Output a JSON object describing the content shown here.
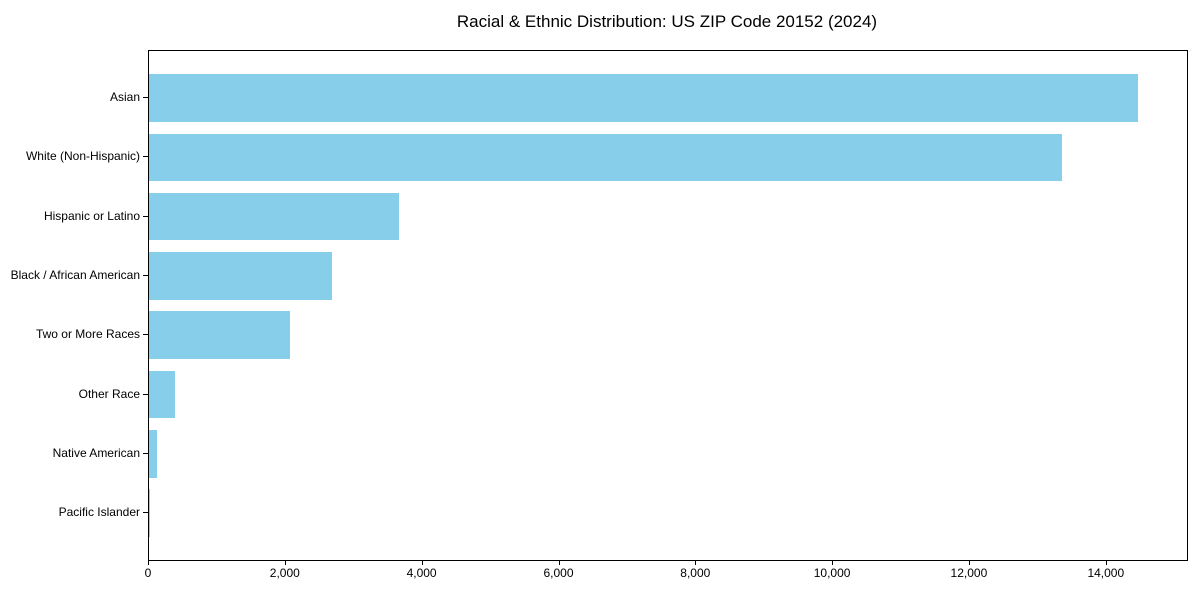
{
  "chart_data": {
    "type": "bar",
    "orientation": "horizontal",
    "title": "Racial & Ethnic Distribution: US ZIP Code 20152 (2024)",
    "categories": [
      "Asian",
      "White (Non-Hispanic)",
      "Hispanic or Latino",
      "Black / African American",
      "Two or More Races",
      "Other Race",
      "Native American",
      "Pacific Islander"
    ],
    "values": [
      14450,
      13350,
      3650,
      2670,
      2060,
      380,
      110,
      10
    ],
    "xlabel": "",
    "ylabel": "",
    "xlim": [
      0,
      15173
    ],
    "xticks": [
      0,
      2000,
      4000,
      6000,
      8000,
      10000,
      12000,
      14000
    ],
    "xtick_labels": [
      "0",
      "2,000",
      "4,000",
      "6,000",
      "8,000",
      "10,000",
      "12,000",
      "14,000"
    ],
    "bar_color": "#87CEEB",
    "axis_color": "#000000",
    "text_color": "#000000",
    "background": "#ffffff",
    "grid": false,
    "legend": null
  }
}
